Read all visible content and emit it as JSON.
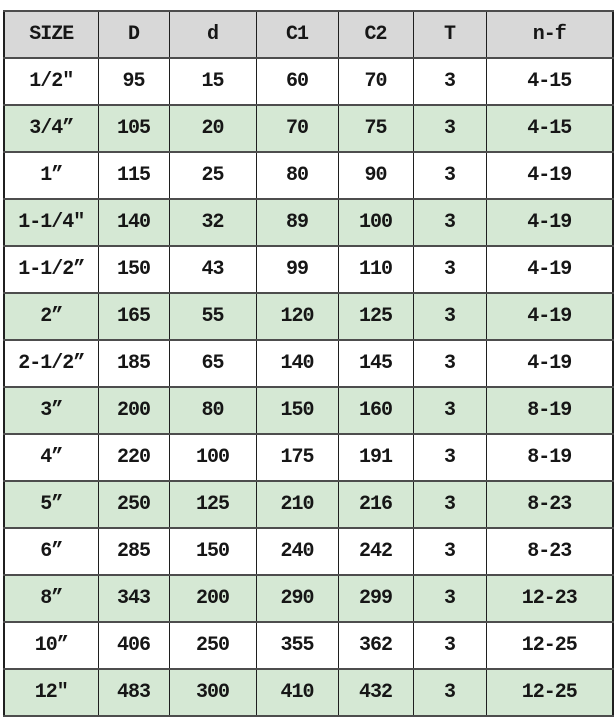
{
  "table": {
    "name": "flange-dimension-spec-table",
    "columns": [
      "SIZE",
      "D",
      "d",
      "C1",
      "C2",
      "T",
      "n-f"
    ],
    "rows": [
      [
        "1/2″",
        "95",
        "15",
        "60",
        "70",
        "3",
        "4-15"
      ],
      [
        "3/4”",
        "105",
        "20",
        "70",
        "75",
        "3",
        "4-15"
      ],
      [
        "1”",
        "115",
        "25",
        "80",
        "90",
        "3",
        "4-19"
      ],
      [
        "1-1/4″",
        "140",
        "32",
        "89",
        "100",
        "3",
        "4-19"
      ],
      [
        "1-1/2”",
        "150",
        "43",
        "99",
        "110",
        "3",
        "4-19"
      ],
      [
        "2”",
        "165",
        "55",
        "120",
        "125",
        "3",
        "4-19"
      ],
      [
        "2-1/2”",
        "185",
        "65",
        "140",
        "145",
        "3",
        "4-19"
      ],
      [
        "3”",
        "200",
        "80",
        "150",
        "160",
        "3",
        "8-19"
      ],
      [
        "4”",
        "220",
        "100",
        "175",
        "191",
        "3",
        "8-19"
      ],
      [
        "5”",
        "250",
        "125",
        "210",
        "216",
        "3",
        "8-23"
      ],
      [
        "6”",
        "285",
        "150",
        "240",
        "242",
        "3",
        "8-23"
      ],
      [
        "8”",
        "343",
        "200",
        "290",
        "299",
        "3",
        "12-23"
      ],
      [
        "10”",
        "406",
        "250",
        "355",
        "362",
        "3",
        "12-25"
      ],
      [
        "12″",
        "483",
        "300",
        "410",
        "432",
        "3",
        "12-25"
      ]
    ]
  },
  "colors": {
    "header_bg": "#d8d8d8",
    "row_bg": "#ffffff",
    "row_alt_bg": "#d5e8d4",
    "border_vertical": "#1f1f1f",
    "border_horizontal": "#4d4d4d",
    "text": "#161616"
  }
}
